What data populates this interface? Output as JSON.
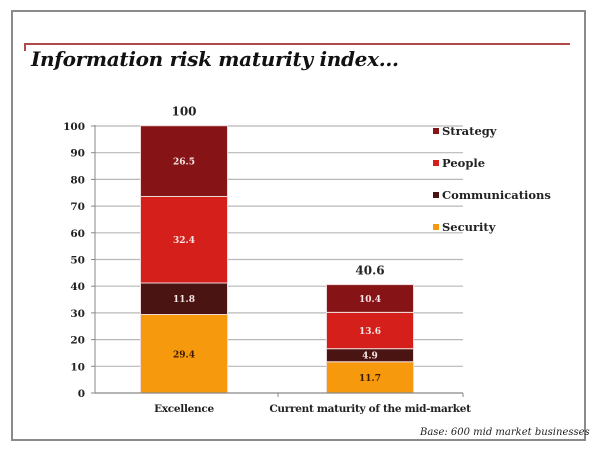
{
  "title": "Information risk maturity index...",
  "footnote": "Base: 600 mid market businesses",
  "colors": {
    "Strategy": "#861417",
    "People": "#d51f1a",
    "Communications": "#4a1412",
    "Security": "#f7990d",
    "frame": "#8a8a8a",
    "rule": "#b04a4a",
    "grid": "#b8b8b8"
  },
  "chart_data": {
    "type": "bar",
    "stacked": true,
    "title": "Information risk maturity index...",
    "xlabel": "",
    "ylabel": "",
    "ylim": [
      0,
      100
    ],
    "yticks": [
      0,
      10,
      20,
      30,
      40,
      50,
      60,
      70,
      80,
      90,
      100
    ],
    "grid": true,
    "legend_position": "right",
    "categories": [
      "Excellence",
      "Current maturity of the mid-market"
    ],
    "totals": [
      "100",
      "40.6"
    ],
    "series": [
      {
        "name": "Security",
        "values": [
          29.4,
          11.7
        ],
        "labels": [
          "29.4",
          "11.7"
        ]
      },
      {
        "name": "Communications",
        "values": [
          11.8,
          4.9
        ],
        "labels": [
          "11.8",
          "4.9"
        ]
      },
      {
        "name": "People",
        "values": [
          32.4,
          13.6
        ],
        "labels": [
          "32.4",
          "13.6"
        ]
      },
      {
        "name": "Strategy",
        "values": [
          26.5,
          10.4
        ],
        "labels": [
          "26.5",
          "10.4"
        ]
      }
    ],
    "legend_order": [
      "Strategy",
      "People",
      "Communications",
      "Security"
    ]
  }
}
